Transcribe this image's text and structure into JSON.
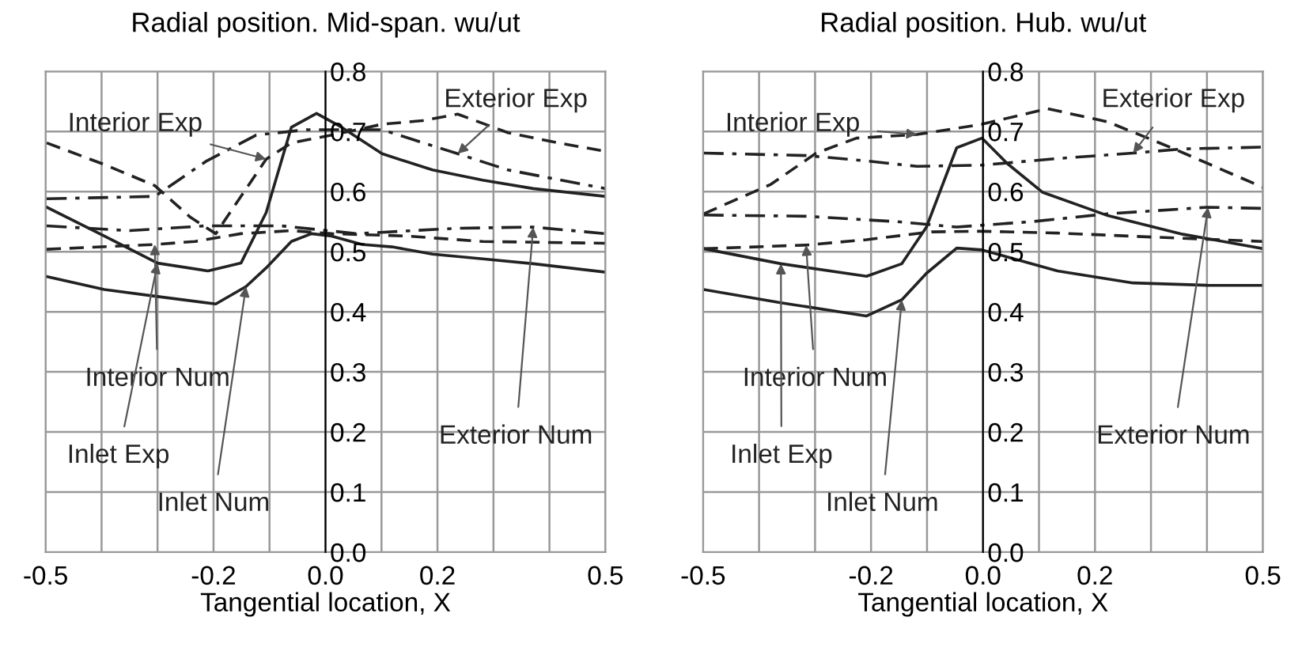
{
  "chart_data": [
    {
      "type": "line",
      "title": "Radial position. Mid-span. wu/ut",
      "xlabel": "Tangential location, X",
      "xlim": [
        -0.5,
        0.5
      ],
      "xticks": [
        -0.5,
        {
          "value": -0.4,
          "label": null
        },
        {
          "value": -0.3,
          "label": null
        },
        -0.2,
        {
          "value": -0.1,
          "label": null
        },
        {
          "value": 0,
          "label": "0.0"
        },
        {
          "value": 0.1,
          "label": null
        },
        0.2,
        {
          "value": 0.3,
          "label": null
        },
        {
          "value": 0.4,
          "label": null
        },
        0.5
      ],
      "ylim": [
        0,
        0.8
      ],
      "yticks": [
        {
          "value": 0,
          "label": "0.0"
        },
        0.1,
        0.2,
        0.3,
        0.4,
        0.5,
        0.6,
        0.7,
        0.8
      ],
      "grid": true,
      "marker": "none",
      "series": [
        {
          "color": "#222222",
          "line_style": "solid",
          "x": [
            -0.498,
            -0.395,
            -0.3,
            -0.21,
            -0.151,
            -0.106,
            -0.061,
            -0.016,
            0.029,
            0.101,
            0.191,
            0.281,
            0.371,
            0.5
          ],
          "values": [
            0.574,
            0.526,
            0.481,
            0.468,
            0.481,
            0.565,
            0.707,
            0.73,
            0.707,
            0.663,
            0.636,
            0.619,
            0.605,
            0.592
          ]
        },
        {
          "color": "#222222",
          "line_style": "solid",
          "x": [
            -0.5,
            -0.395,
            -0.305,
            -0.196,
            -0.142,
            -0.106,
            -0.061,
            -0.025,
            0.011,
            0.065,
            0.119,
            0.191,
            0.281,
            0.371,
            0.5
          ],
          "values": [
            0.459,
            0.437,
            0.426,
            0.413,
            0.442,
            0.473,
            0.517,
            0.53,
            0.526,
            0.512,
            0.508,
            0.496,
            0.488,
            0.48,
            0.466
          ]
        },
        {
          "color": "#222222",
          "line_style": "dashed",
          "x": [
            -0.498,
            -0.395,
            -0.305,
            -0.241,
            -0.196,
            -0.151,
            -0.106,
            -0.061,
            0.011,
            0.101,
            0.173,
            0.236,
            0.326,
            0.416,
            0.5
          ],
          "values": [
            0.681,
            0.645,
            0.61,
            0.557,
            0.53,
            0.592,
            0.654,
            0.681,
            0.694,
            0.712,
            0.718,
            0.729,
            0.698,
            0.681,
            0.667
          ]
        },
        {
          "color": "#222222",
          "line_style": "dashdot",
          "x": [
            -0.498,
            -0.305,
            -0.214,
            -0.124,
            -0.034,
            0.101,
            0.236,
            0.326,
            0.5
          ],
          "values": [
            0.588,
            0.592,
            0.65,
            0.694,
            0.703,
            0.703,
            0.663,
            0.636,
            0.605
          ]
        },
        {
          "color": "#222222",
          "line_style": "dashed",
          "x": [
            -0.498,
            -0.305,
            -0.233,
            -0.151,
            -0.061,
            0.011,
            0.146,
            0.281,
            0.5
          ],
          "values": [
            0.504,
            0.512,
            0.517,
            0.53,
            0.535,
            0.53,
            0.526,
            0.517,
            0.514
          ]
        },
        {
          "color": "#222222",
          "line_style": "dashdot",
          "x": [
            -0.498,
            -0.35,
            -0.214,
            -0.079,
            0.056,
            0.236,
            0.371,
            0.5
          ],
          "values": [
            0.543,
            0.535,
            0.543,
            0.543,
            0.53,
            0.539,
            0.541,
            0.53
          ]
        }
      ],
      "annotations": [
        {
          "text": "Interior Exp",
          "x": -0.106,
          "y": 0.654
        },
        {
          "text": "Exterior Exp",
          "x": 0.236,
          "y": 0.663
        },
        {
          "text": "Interior Num",
          "x": -0.305,
          "y": 0.512
        },
        {
          "text": "Exterior Num",
          "x": 0.371,
          "y": 0.541
        },
        {
          "text": "Inlet Exp",
          "x": -0.3,
          "y": 0.481
        },
        {
          "text": "Inlet Num",
          "x": -0.142,
          "y": 0.442
        }
      ]
    },
    {
      "type": "line",
      "title": "Radial position. Hub. wu/ut",
      "xlabel": "Tangential location, X",
      "xlim": [
        -0.5,
        0.5
      ],
      "xticks": [
        -0.5,
        {
          "value": -0.4,
          "label": null
        },
        {
          "value": -0.3,
          "label": null
        },
        -0.2,
        {
          "value": -0.1,
          "label": null
        },
        {
          "value": 0,
          "label": "0.0"
        },
        {
          "value": 0.1,
          "label": null
        },
        0.2,
        {
          "value": 0.3,
          "label": null
        },
        {
          "value": 0.4,
          "label": null
        },
        0.5
      ],
      "ylim": [
        0,
        0.8
      ],
      "yticks": [
        {
          "value": 0,
          "label": "0.0"
        },
        0.1,
        0.2,
        0.3,
        0.4,
        0.5,
        0.6,
        0.7,
        0.8
      ],
      "grid": true,
      "marker": "none",
      "series": [
        {
          "color": "#222222",
          "line_style": "solid",
          "x": [
            -0.499,
            -0.361,
            -0.208,
            -0.145,
            -0.101,
            -0.047,
            -0.002,
            0.043,
            0.106,
            0.223,
            0.357,
            0.5
          ],
          "values": [
            0.505,
            0.48,
            0.459,
            0.48,
            0.541,
            0.673,
            0.689,
            0.647,
            0.599,
            0.56,
            0.529,
            0.505
          ]
        },
        {
          "color": "#222222",
          "line_style": "solid",
          "x": [
            -0.499,
            -0.361,
            -0.208,
            -0.145,
            -0.101,
            -0.047,
            -0.002,
            0.133,
            0.268,
            0.402,
            0.5
          ],
          "values": [
            0.437,
            0.415,
            0.393,
            0.42,
            0.464,
            0.506,
            0.503,
            0.468,
            0.448,
            0.444,
            0.444
          ]
        },
        {
          "color": "#222222",
          "line_style": "dashed",
          "x": [
            -0.499,
            -0.379,
            -0.298,
            -0.226,
            -0.118,
            -0.002,
            0.115,
            0.223,
            0.339,
            0.5
          ],
          "values": [
            0.563,
            0.612,
            0.664,
            0.689,
            0.695,
            0.712,
            0.738,
            0.716,
            0.672,
            0.607
          ]
        },
        {
          "color": "#222222",
          "line_style": "dashdot",
          "x": [
            -0.499,
            -0.316,
            -0.208,
            -0.118,
            -0.002,
            0.133,
            0.268,
            0.357,
            0.5
          ],
          "values": [
            0.664,
            0.66,
            0.651,
            0.642,
            0.644,
            0.655,
            0.664,
            0.671,
            0.674
          ]
        },
        {
          "color": "#222222",
          "line_style": "dashed",
          "x": [
            -0.499,
            -0.316,
            -0.208,
            -0.092,
            -0.002,
            0.133,
            0.312,
            0.5
          ],
          "values": [
            0.505,
            0.511,
            0.52,
            0.533,
            0.534,
            0.531,
            0.524,
            0.517
          ]
        },
        {
          "color": "#222222",
          "line_style": "dashdot",
          "x": [
            -0.499,
            -0.316,
            -0.154,
            -0.047,
            0.088,
            0.223,
            0.402,
            0.5
          ],
          "values": [
            0.561,
            0.559,
            0.55,
            0.541,
            0.55,
            0.563,
            0.574,
            0.572
          ]
        }
      ],
      "annotations": [
        {
          "text": "Interior Exp",
          "x": -0.118,
          "y": 0.695
        },
        {
          "text": "Exterior Exp",
          "x": 0.268,
          "y": 0.664
        },
        {
          "text": "Interior Num",
          "x": -0.316,
          "y": 0.511
        },
        {
          "text": "Exterior Num",
          "x": 0.402,
          "y": 0.574
        },
        {
          "text": "Inlet Exp",
          "x": -0.361,
          "y": 0.48
        },
        {
          "text": "Inlet Num",
          "x": -0.145,
          "y": 0.42
        }
      ]
    }
  ]
}
